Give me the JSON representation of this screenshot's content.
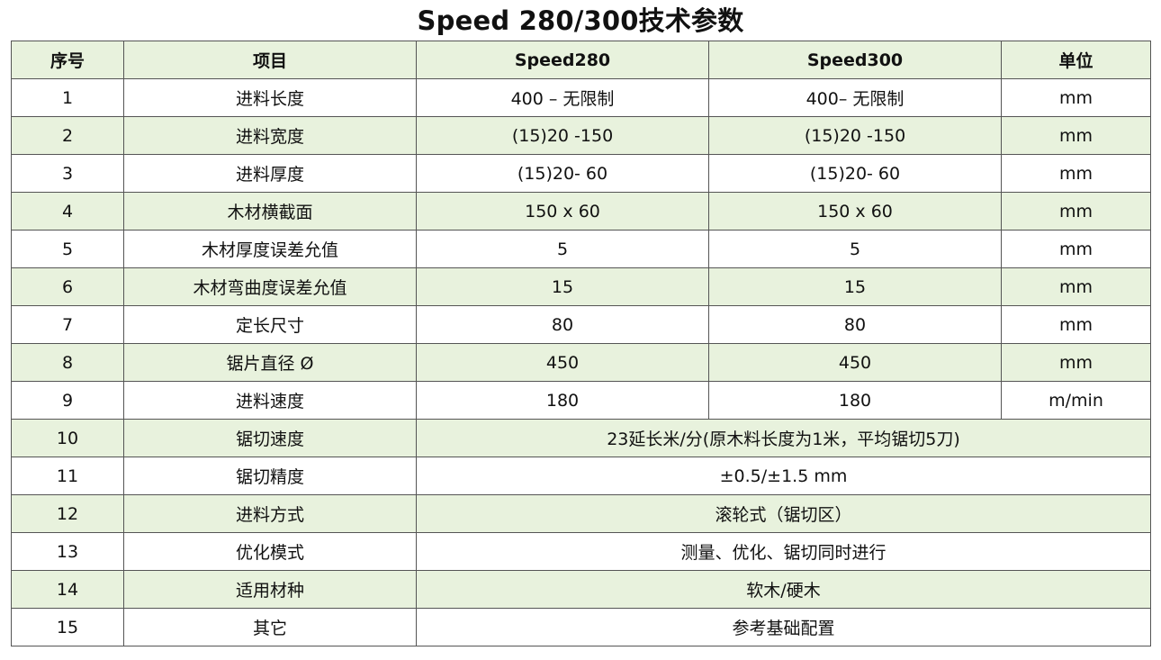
{
  "title": "Speed 280/300技术参数",
  "table": {
    "headers": [
      "序号",
      "项目",
      "Speed280",
      "Speed300",
      "单位"
    ],
    "rows": [
      {
        "no": "1",
        "item": "进料长度",
        "speed280": "400 – 无限制",
        "speed300": "400– 无限制",
        "unit": "mm"
      },
      {
        "no": "2",
        "item": "进料宽度",
        "speed280": "(15)20 -150",
        "speed300": "(15)20 -150",
        "unit": "mm"
      },
      {
        "no": "3",
        "item": "进料厚度",
        "speed280": "(15)20- 60",
        "speed300": "(15)20- 60",
        "unit": "mm"
      },
      {
        "no": "4",
        "item": "木材横截面",
        "speed280": "150 x 60",
        "speed300": "150 x 60",
        "unit": "mm"
      },
      {
        "no": "5",
        "item": "木材厚度误差允值",
        "speed280": "5",
        "speed300": "5",
        "unit": "mm"
      },
      {
        "no": "6",
        "item": "木材弯曲度误差允值",
        "speed280": "15",
        "speed300": "15",
        "unit": "mm"
      },
      {
        "no": "7",
        "item": "定长尺寸",
        "speed280": "80",
        "speed300": "80",
        "unit": "mm"
      },
      {
        "no": "8",
        "item": "锯片直径 Ø",
        "speed280": "450",
        "speed300": "450",
        "unit": "mm"
      },
      {
        "no": "9",
        "item": "进料速度",
        "speed280": "180",
        "speed300": "180",
        "unit": "m/min"
      },
      {
        "no": "10",
        "item": "锯切速度",
        "merged": "23延长米/分(原木料长度为1米，平均锯切5刀)"
      },
      {
        "no": "11",
        "item": "锯切精度",
        "merged": "±0.5/±1.5 mm"
      },
      {
        "no": "12",
        "item": "进料方式",
        "merged": "滚轮式（锯切区）"
      },
      {
        "no": "13",
        "item": "优化模式",
        "merged": "测量、优化、锯切同时进行"
      },
      {
        "no": "14",
        "item": "适用材种",
        "merged": "软木/硬木"
      },
      {
        "no": "15",
        "item": "其它",
        "merged": "参考基础配置"
      }
    ]
  }
}
